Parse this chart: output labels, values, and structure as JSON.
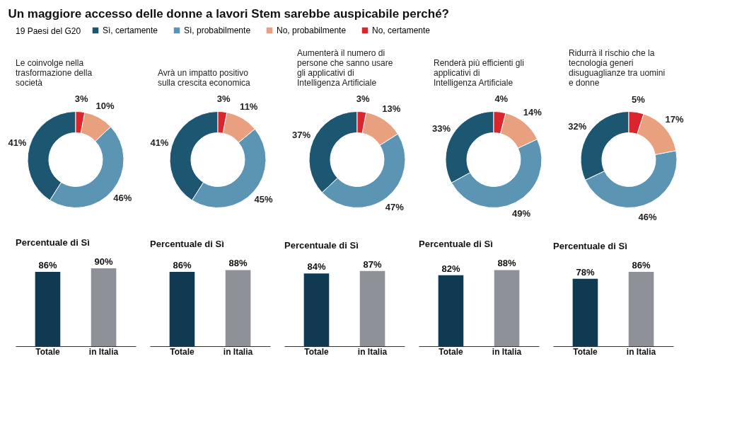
{
  "chart_data": [
    {
      "type": "donut",
      "title": "Un maggiore accesso delle donne a lavori Stem sarebbe auspicabile perché?",
      "subtitle": "Le coinvolge nella trasformazione della società",
      "legend_title": "19 Paesi del G20",
      "legend": "top",
      "categories": [
        "Sì, certamente",
        "Sì, probabilmente",
        "No, probabilmente",
        "No, certamente"
      ],
      "values": [
        41,
        46,
        10,
        3
      ],
      "value_labels": [
        "41%",
        "46%",
        "10%",
        "3%"
      ],
      "colors": [
        "#1d5670",
        "#5b95b3",
        "#e8a07f",
        "#d9252b"
      ]
    },
    {
      "type": "donut",
      "subtitle": "Avrà un impatto positivo sulla crescita economica",
      "categories": [
        null,
        null,
        null,
        null
      ],
      "values": [
        41,
        45,
        11,
        3
      ],
      "value_labels": [
        "41%",
        "45%",
        "11%",
        "3%"
      ],
      "colors": [
        "#1d5670",
        "#5b95b3",
        "#e8a07f",
        "#d9252b"
      ]
    },
    {
      "type": "donut",
      "subtitle": "Aumenterà il numero di persone che sanno usare gli applicativi di Intelligenza Artificiale",
      "categories": [
        null,
        null,
        null,
        null
      ],
      "values": [
        37,
        47,
        13,
        3
      ],
      "value_labels": [
        "37%",
        "47%",
        "13%",
        "3%"
      ],
      "colors": [
        "#1d5670",
        "#5b95b3",
        "#e8a07f",
        "#d9252b"
      ]
    },
    {
      "type": "donut",
      "subtitle": "Renderà più efficienti gli applicativi di Intelligenza Artificiale",
      "categories": [
        null,
        null,
        null,
        null
      ],
      "values": [
        33,
        49,
        14,
        4
      ],
      "value_labels": [
        "33%",
        "49%",
        "14%",
        "4%"
      ],
      "colors": [
        "#1d5670",
        "#5b95b3",
        "#e8a07f",
        "#d9252b"
      ]
    },
    {
      "type": "donut",
      "subtitle": "Ridurrà il rischio che la tecnologia generi disuguaglianze tra uomini e donne",
      "categories": [
        null,
        null,
        null,
        null
      ],
      "values": [
        32,
        46,
        17,
        5
      ],
      "value_labels": [
        "32%",
        "46%",
        "17%",
        "5%"
      ],
      "colors": [
        "#1d5670",
        "#5b95b3",
        "#e8a07f",
        "#d9252b"
      ]
    },
    {
      "type": "bar",
      "title": "Percentuale di Sì",
      "categories": [
        "Totale",
        "in Italia"
      ],
      "values": [
        86,
        90
      ],
      "value_labels": [
        "86%",
        "90%"
      ],
      "colors": [
        "#0f3a52",
        "#8e9298"
      ]
    },
    {
      "type": "bar",
      "title": "Percentuale di Sì",
      "categories": [
        "Totale",
        "in Italia"
      ],
      "values": [
        86,
        88
      ],
      "value_labels": [
        "86%",
        "88%"
      ],
      "colors": [
        "#0f3a52",
        "#8e9298"
      ]
    },
    {
      "type": "bar",
      "title": "Percentuale di Sì",
      "categories": [
        "Totale",
        "in Italia"
      ],
      "values": [
        84,
        87
      ],
      "value_labels": [
        "84%",
        "87%"
      ],
      "colors": [
        "#0f3a52",
        "#8e9298"
      ]
    },
    {
      "type": "bar",
      "title": "Percentuale di Sì",
      "categories": [
        "Totale",
        "in Italia"
      ],
      "values": [
        82,
        88
      ],
      "value_labels": [
        "82%",
        "88%"
      ],
      "colors": [
        "#0f3a52",
        "#8e9298"
      ]
    },
    {
      "type": "bar",
      "title": "Percentuale di Sì",
      "categories": [
        "Totale",
        "in Italia"
      ],
      "values": [
        78,
        86
      ],
      "value_labels": [
        "78%",
        "86%"
      ],
      "colors": [
        "#0f3a52",
        "#8e9298"
      ]
    }
  ]
}
